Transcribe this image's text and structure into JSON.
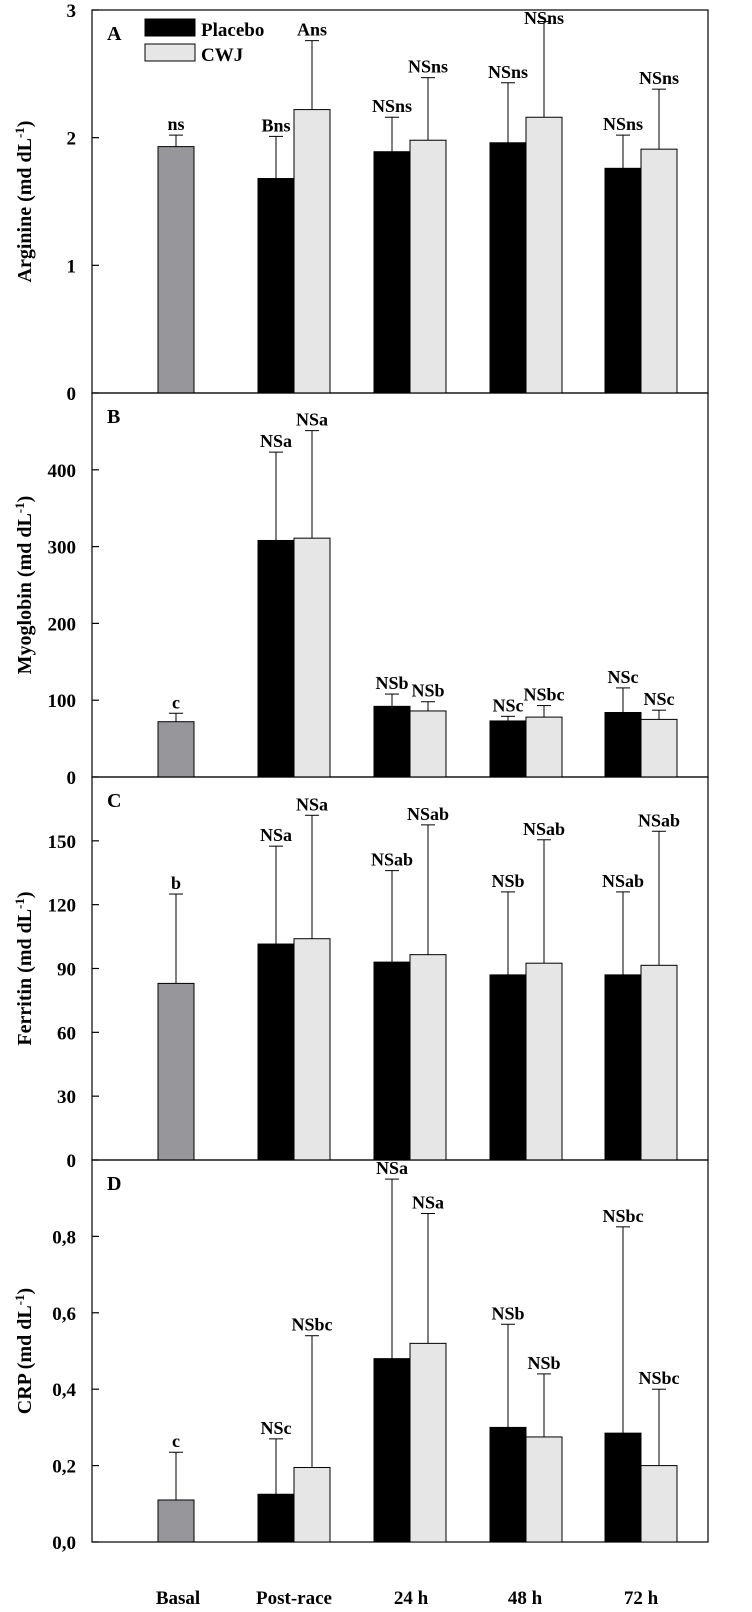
{
  "colors": {
    "basal": "#97969b",
    "placebo": "#000000",
    "cwj": "#e6e6e6",
    "axis": "#000000"
  },
  "chart_data": {
    "type": "bar",
    "categories": [
      "Basal",
      "Post-race",
      "24 h",
      "48 h",
      "72 h"
    ],
    "legend": {
      "position": "top-left",
      "entries": [
        "Placebo",
        "CWJ"
      ]
    },
    "panels": [
      {
        "letter": "A",
        "ylabel": "Arginine (md dL",
        "ylabel_sup": "-1",
        "ylabel_close": ")",
        "ylim": [
          0,
          3
        ],
        "yticks": [
          "0",
          "1",
          "2",
          "3"
        ],
        "ytick_values": [
          0,
          1,
          2,
          3
        ],
        "basal": {
          "value": 1.93,
          "error": 0.09,
          "label": "ns"
        },
        "series": [
          {
            "name": "Placebo",
            "values": [
              1.68,
              1.89,
              1.96,
              1.76
            ],
            "errors": [
              0.33,
              0.27,
              0.47,
              0.26
            ],
            "labels": [
              "Bns",
              "NSns",
              "NSns",
              "NSns"
            ]
          },
          {
            "name": "CWJ",
            "values": [
              2.22,
              1.98,
              2.16,
              1.91
            ],
            "errors": [
              0.54,
              0.49,
              0.75,
              0.47
            ],
            "labels": [
              "Ans",
              "NSns",
              "NSns",
              "NSns"
            ]
          }
        ]
      },
      {
        "letter": "B",
        "ylabel": "Myoglobin (md dL",
        "ylabel_sup": "-1",
        "ylabel_close": ")",
        "ylim": [
          0,
          500
        ],
        "yticks": [
          "0",
          "100",
          "200",
          "300",
          "400"
        ],
        "ytick_values": [
          0,
          100,
          200,
          300,
          400
        ],
        "basal": {
          "value": 72,
          "error": 11,
          "label": "c"
        },
        "series": [
          {
            "name": "Placebo",
            "values": [
              308,
              92,
              73,
              84
            ],
            "errors": [
              115,
              16,
              6,
              32
            ],
            "labels": [
              "NSa",
              "NSb",
              "NSc",
              "NSc"
            ]
          },
          {
            "name": "CWJ",
            "values": [
              311,
              86,
              78,
              75
            ],
            "errors": [
              140,
              12,
              15,
              12
            ],
            "labels": [
              "NSa",
              "NSb",
              "NSbc",
              "NSc"
            ]
          }
        ]
      },
      {
        "letter": "C",
        "ylabel": "Ferritin (md dL",
        "ylabel_sup": "-1",
        "ylabel_close": ")",
        "ylim": [
          0,
          180
        ],
        "yticks": [
          "0",
          "30",
          "60",
          "90",
          "120",
          "150"
        ],
        "ytick_values": [
          0,
          30,
          60,
          90,
          120,
          150
        ],
        "basal": {
          "value": 83,
          "error": 42,
          "label": "b"
        },
        "series": [
          {
            "name": "Placebo",
            "values": [
              101.5,
              93,
              87,
              87
            ],
            "errors": [
              46,
              43,
              39,
              39
            ],
            "labels": [
              "NSa",
              "NSab",
              "NSb",
              "NSab"
            ]
          },
          {
            "name": "CWJ",
            "values": [
              104,
              96.5,
              92.5,
              91.5
            ],
            "errors": [
              58,
              61,
              58,
              63
            ],
            "labels": [
              "NSa",
              "NSab",
              "NSab",
              "NSab"
            ]
          }
        ]
      },
      {
        "letter": "D",
        "ylabel": "CRP (md dL",
        "ylabel_sup": "-1",
        "ylabel_close": ")",
        "ylim": [
          0,
          1.0
        ],
        "yticks": [
          "0,0",
          "0,2",
          "0,4",
          "0,6",
          "0,8"
        ],
        "ytick_values": [
          0,
          0.2,
          0.4,
          0.6,
          0.8
        ],
        "basal": {
          "value": 0.11,
          "error": 0.125,
          "label": "c"
        },
        "series": [
          {
            "name": "Placebo",
            "values": [
              0.125,
              0.48,
              0.3,
              0.285
            ],
            "errors": [
              0.145,
              0.47,
              0.27,
              0.54
            ],
            "labels": [
              "NSc",
              "NSa",
              "NSb",
              "NSbc"
            ]
          },
          {
            "name": "CWJ",
            "values": [
              0.195,
              0.52,
              0.275,
              0.2
            ],
            "errors": [
              0.345,
              0.34,
              0.165,
              0.2
            ],
            "labels": [
              "NSbc",
              "NSa",
              "NSb",
              "NSbc"
            ]
          }
        ]
      }
    ]
  }
}
